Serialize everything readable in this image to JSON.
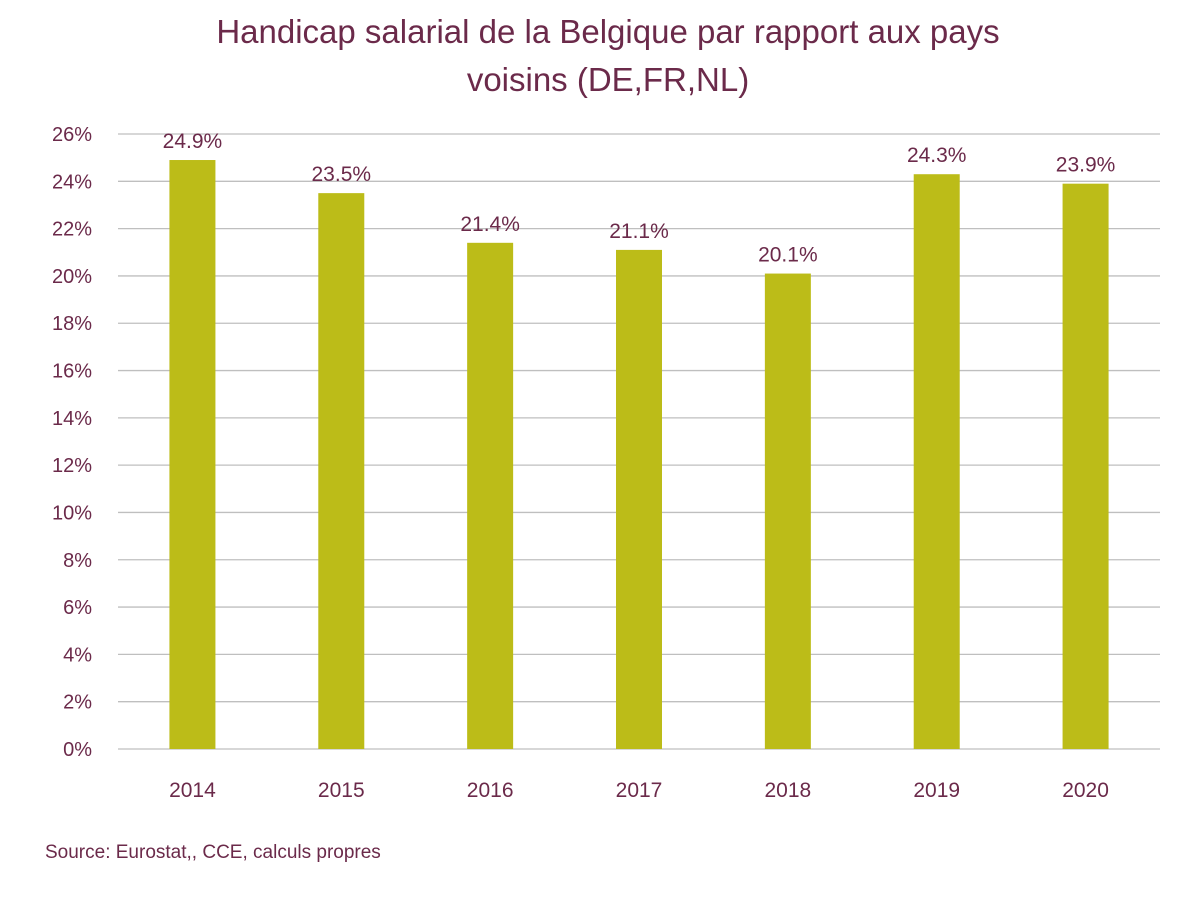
{
  "chart_data": {
    "type": "bar",
    "title_line1": "Handicap salarial de la Belgique par rapport aux pays",
    "title_line2": "voisins (DE,FR,NL)",
    "categories": [
      "2014",
      "2015",
      "2016",
      "2017",
      "2018",
      "2019",
      "2020"
    ],
    "values": [
      24.9,
      23.5,
      21.4,
      21.1,
      20.1,
      24.3,
      23.9
    ],
    "data_labels": [
      "24.9%",
      "23.5%",
      "21.4%",
      "21.1%",
      "20.1%",
      "24.3%",
      "23.9%"
    ],
    "yticks": [
      0,
      2,
      4,
      6,
      8,
      10,
      12,
      14,
      16,
      18,
      20,
      22,
      24,
      26
    ],
    "ytick_labels": [
      "0%",
      "2%",
      "4%",
      "6%",
      "8%",
      "10%",
      "12%",
      "14%",
      "16%",
      "18%",
      "20%",
      "22%",
      "24%",
      "26%"
    ],
    "ylim": [
      0,
      26
    ],
    "xlabel": "",
    "ylabel": "",
    "grid": true,
    "legend": "none",
    "bar_color": "#bcbc18",
    "text_color": "#6b2a4a",
    "grid_color": "#bfbfbf"
  },
  "source": "Source: Eurostat,, CCE, calculs propres"
}
